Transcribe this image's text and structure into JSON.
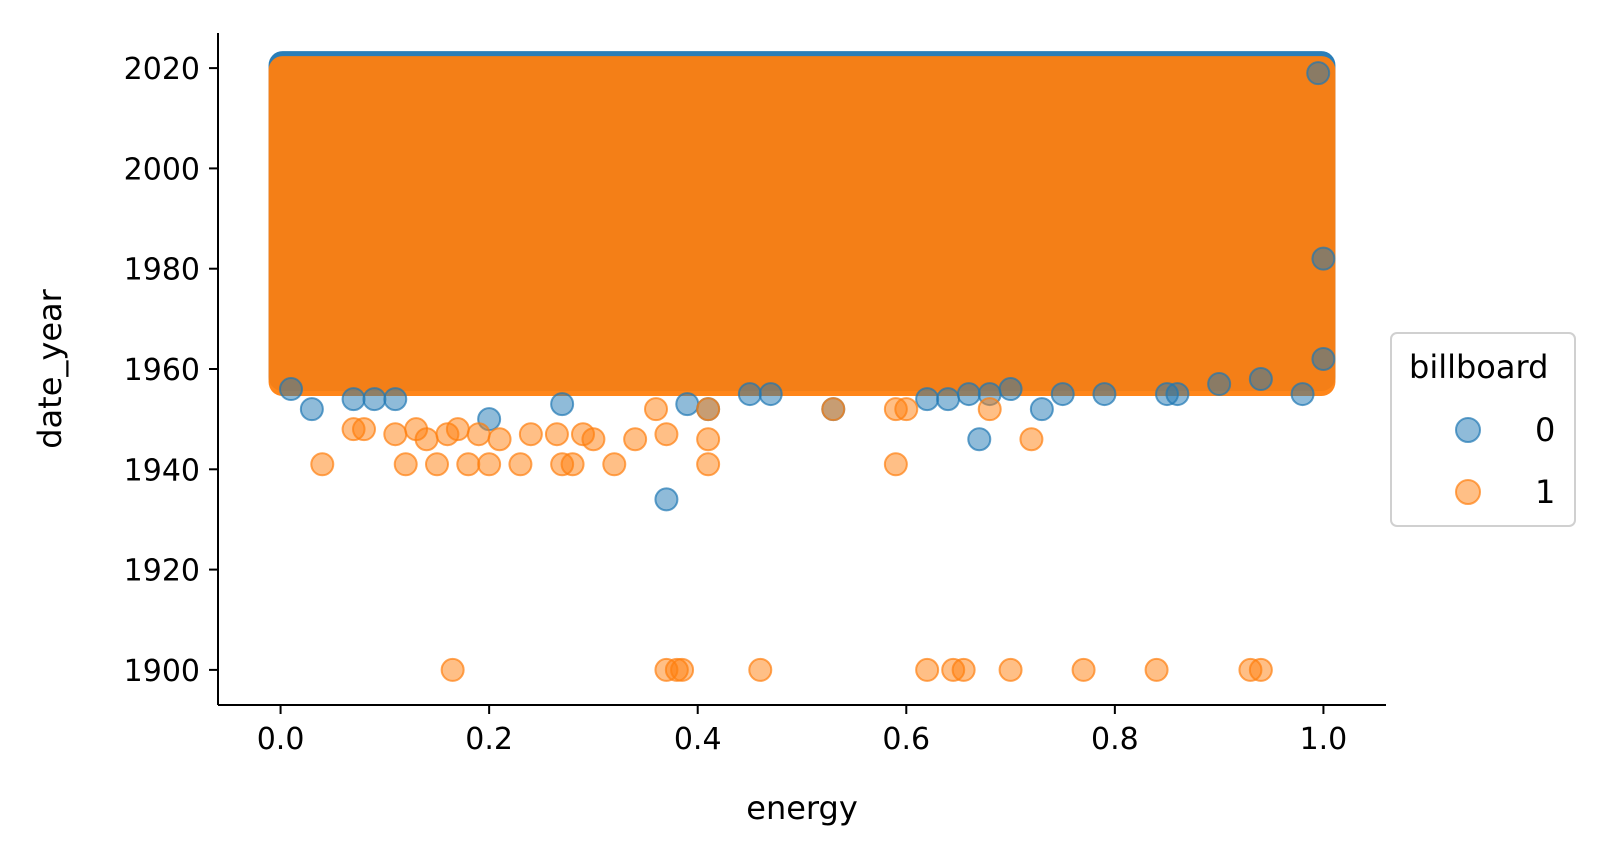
{
  "chart_data": {
    "type": "scatter",
    "title": "",
    "xlabel": "energy",
    "ylabel": "date_year",
    "xlim": [
      -0.06,
      1.06
    ],
    "ylim": [
      1893,
      2027
    ],
    "x_ticks": [
      0.0,
      0.2,
      0.4,
      0.6,
      0.8,
      1.0
    ],
    "x_tick_labels": [
      "0.0",
      "0.2",
      "0.4",
      "0.6",
      "0.8",
      "1.0"
    ],
    "y_ticks": [
      1900,
      1920,
      1940,
      1960,
      1980,
      2000,
      2020
    ],
    "y_tick_labels": [
      "1900",
      "1920",
      "1940",
      "1960",
      "1980",
      "2000",
      "2020"
    ],
    "grid": false,
    "legend": {
      "title": "billboard",
      "placement": "right",
      "entries": [
        "0",
        "1"
      ]
    },
    "series": [
      {
        "name": "0",
        "color": "#1f77b4",
        "dense_region": {
          "x": [
            0.0,
            1.0
          ],
          "y": [
            1958,
            2021
          ]
        },
        "points": [
          [
            0.01,
            1956
          ],
          [
            0.03,
            1952
          ],
          [
            0.07,
            1954
          ],
          [
            0.09,
            1954
          ],
          [
            0.11,
            1954
          ],
          [
            0.2,
            1950
          ],
          [
            0.27,
            1953
          ],
          [
            0.37,
            1934
          ],
          [
            0.39,
            1953
          ],
          [
            0.41,
            1952
          ],
          [
            0.45,
            1955
          ],
          [
            0.47,
            1955
          ],
          [
            0.53,
            1952
          ],
          [
            0.62,
            1954
          ],
          [
            0.64,
            1954
          ],
          [
            0.66,
            1955
          ],
          [
            0.67,
            1946
          ],
          [
            0.68,
            1955
          ],
          [
            0.7,
            1956
          ],
          [
            0.73,
            1952
          ],
          [
            0.75,
            1955
          ],
          [
            0.79,
            1955
          ],
          [
            0.85,
            1955
          ],
          [
            0.86,
            1955
          ],
          [
            0.9,
            1957
          ],
          [
            0.94,
            1958
          ],
          [
            0.98,
            1955
          ],
          [
            1.0,
            1962
          ],
          [
            0.995,
            2019
          ],
          [
            1.0,
            1982
          ]
        ]
      },
      {
        "name": "1",
        "color": "#ff7f0e",
        "dense_region": {
          "x": [
            0.0,
            1.0
          ],
          "y": [
            1957,
            2020
          ]
        },
        "points": [
          [
            0.04,
            1941
          ],
          [
            0.07,
            1948
          ],
          [
            0.08,
            1948
          ],
          [
            0.11,
            1947
          ],
          [
            0.12,
            1941
          ],
          [
            0.13,
            1948
          ],
          [
            0.14,
            1946
          ],
          [
            0.15,
            1941
          ],
          [
            0.16,
            1947
          ],
          [
            0.165,
            1900
          ],
          [
            0.17,
            1948
          ],
          [
            0.18,
            1941
          ],
          [
            0.19,
            1947
          ],
          [
            0.2,
            1941
          ],
          [
            0.21,
            1946
          ],
          [
            0.23,
            1941
          ],
          [
            0.24,
            1947
          ],
          [
            0.265,
            1947
          ],
          [
            0.27,
            1941
          ],
          [
            0.28,
            1941
          ],
          [
            0.29,
            1947
          ],
          [
            0.3,
            1946
          ],
          [
            0.32,
            1941
          ],
          [
            0.34,
            1946
          ],
          [
            0.36,
            1952
          ],
          [
            0.37,
            1947
          ],
          [
            0.37,
            1900
          ],
          [
            0.38,
            1900
          ],
          [
            0.385,
            1900
          ],
          [
            0.41,
            1946
          ],
          [
            0.41,
            1941
          ],
          [
            0.41,
            1952
          ],
          [
            0.46,
            1900
          ],
          [
            0.53,
            1952
          ],
          [
            0.59,
            1941
          ],
          [
            0.59,
            1952
          ],
          [
            0.6,
            1952
          ],
          [
            0.62,
            1900
          ],
          [
            0.645,
            1900
          ],
          [
            0.655,
            1900
          ],
          [
            0.68,
            1952
          ],
          [
            0.7,
            1900
          ],
          [
            0.72,
            1946
          ],
          [
            0.77,
            1900
          ],
          [
            0.84,
            1900
          ],
          [
            0.93,
            1900
          ],
          [
            0.94,
            1900
          ]
        ]
      }
    ]
  }
}
